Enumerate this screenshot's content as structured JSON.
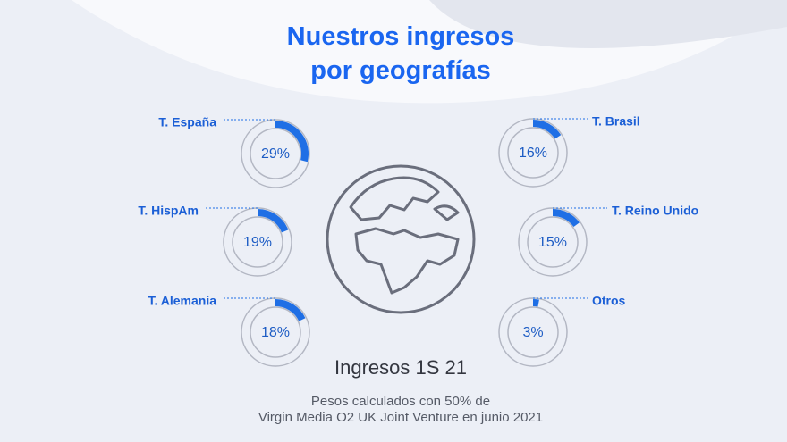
{
  "chart_data": {
    "type": "gauge",
    "title": "Nuestros ingresos\npor geografías",
    "categories": [
      "T. España",
      "T. HispAm",
      "T. Alemania",
      "T. Brasil",
      "T. Reino Unido",
      "Otros"
    ],
    "values": [
      29,
      19,
      18,
      16,
      15,
      3
    ],
    "value_labels": [
      "29%",
      "19%",
      "18%",
      "16%",
      "15%",
      "3%"
    ],
    "color": "#1f6fe5",
    "subtitle": "Ingresos 1S 21",
    "note": "Pesos calculados con 50% de\nVirgin Media O2 UK Joint Venture en junio 2021"
  }
}
